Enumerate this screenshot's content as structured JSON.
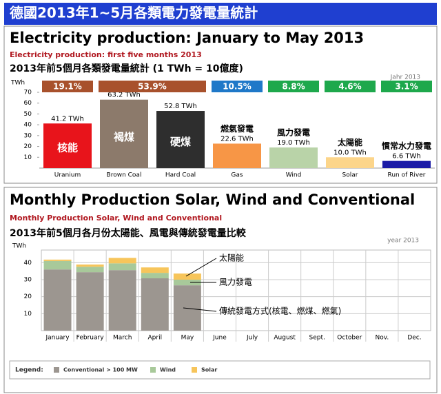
{
  "banner": "德國2013年1~5月各類電力發電量統計",
  "chart_data": [
    {
      "type": "bar",
      "title": "Electricity production: January to May 2013",
      "subtitle": "Electricity production: first five months 2013",
      "subtitle_zh": "2013年前5個月各類發電量統計 (1 TWh = 10億度)",
      "note": "Jahr 2013",
      "ylabel": "TWh",
      "categories": [
        "Uranium",
        "Brown Coal",
        "Hard Coal",
        "Gas",
        "Wind",
        "Solar",
        "Run of River"
      ],
      "values": [
        41.2,
        63.2,
        52.8,
        22.6,
        19.0,
        10.0,
        6.6
      ],
      "value_labels": [
        "41.2 TWh",
        "63.2 TWh",
        "52.8 TWh",
        "22.6 TWh",
        "19.0 TWh",
        "10.0 TWh",
        "6.6 TWh"
      ],
      "colors": [
        "#e8141b",
        "#8c7a6b",
        "#2e2e2e",
        "#f79646",
        "#b9d3a8",
        "#fcd58a",
        "#1c1ca6"
      ],
      "annotations": [
        "核能",
        "褐煤",
        "硬煤",
        "燃氣發電",
        "風力發電",
        "太陽能",
        "慣常水力發電"
      ],
      "shares": {
        "values": [
          19.1,
          53.9,
          10.5,
          8.8,
          4.6,
          3.1
        ],
        "value_labels": [
          "19.1%",
          "53.9%",
          "10.5%",
          "8.8%",
          "4.6%",
          "3.1%"
        ],
        "colors": [
          "#a8512c",
          "#a8512c",
          "#1f78c8",
          "#1ea84c",
          "#1ea84c",
          "#1ea84c"
        ]
      },
      "ylim": [
        0,
        70
      ],
      "yticks": [
        10,
        20,
        30,
        40,
        50,
        60,
        70
      ]
    },
    {
      "type": "stacked_bar",
      "title": "Monthly Production Solar, Wind and Conventional",
      "subtitle": "Monthly Production Solar, Wind and Conventional",
      "subtitle_zh": "2013年前5個月各月份太陽能、風電與傳統發電量比較",
      "note": "year 2013",
      "ylabel": "TWh",
      "categories": [
        "January",
        "February",
        "March",
        "April",
        "May",
        "June",
        "July",
        "August",
        "Sept.",
        "October",
        "Nov.",
        "Dec."
      ],
      "series": [
        {
          "name": "Conventional > 100 MW",
          "color": "#9c9690",
          "values": [
            36,
            34.4,
            35.6,
            30.8,
            26.7,
            null,
            null,
            null,
            null,
            null,
            null,
            null
          ]
        },
        {
          "name": "Wind",
          "color": "#a8c99a",
          "values": [
            5,
            3.2,
            4,
            3.2,
            3.3,
            null,
            null,
            null,
            null,
            null,
            null,
            null
          ]
        },
        {
          "name": "Solar",
          "color": "#f7c55b",
          "values": [
            0.8,
            1.3,
            3.2,
            3.2,
            3.6,
            null,
            null,
            null,
            null,
            null,
            null,
            null
          ]
        }
      ],
      "annotations": [
        "太陽能",
        "風力發電",
        "傳統發電方式(核電、燃煤、燃氣)"
      ],
      "legend_title": "Legend:",
      "ylim": [
        0,
        45
      ],
      "yticks": [
        10,
        20,
        30,
        40
      ],
      "grid": true
    }
  ]
}
